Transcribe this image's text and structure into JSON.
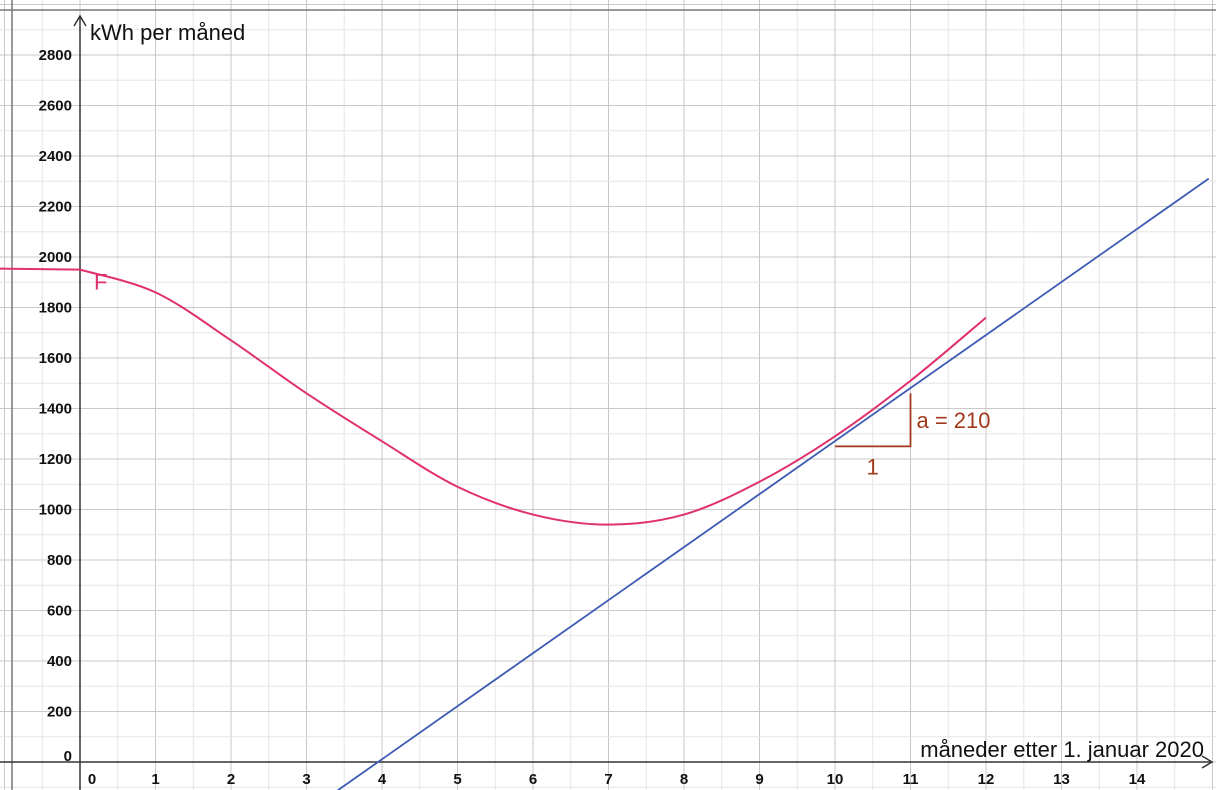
{
  "chart_data": {
    "type": "line",
    "xlabel": "måneder etter 1. januar 2020",
    "ylabel": "kWh per måned",
    "x_ticks": [
      0,
      1,
      2,
      3,
      4,
      5,
      6,
      7,
      8,
      9,
      10,
      11,
      12,
      13,
      14
    ],
    "y_ticks": [
      0,
      200,
      400,
      600,
      800,
      1000,
      1200,
      1400,
      1600,
      1800,
      2000,
      2200,
      2400,
      2600,
      2800
    ],
    "xlim": [
      -1.05,
      14.95
    ],
    "ylim": [
      -110,
      3000
    ],
    "grid": true,
    "series": [
      {
        "name": "F",
        "kind": "curve",
        "color": "#e0306e",
        "x": [
          0,
          1,
          2,
          3,
          4,
          5,
          6,
          7,
          8,
          9,
          10,
          11,
          12
        ],
        "y": [
          1950,
          1860,
          1670,
          1460,
          1270,
          1090,
          980,
          940,
          980,
          1110,
          1290,
          1510,
          1760
        ]
      },
      {
        "kind": "tangent-line",
        "color": "#3d5bb5",
        "slope": 210,
        "point": [
          9.9,
          1250
        ],
        "x_range": [
          3.4,
          14.95
        ]
      }
    ],
    "annotations": [
      {
        "kind": "slope-triangle",
        "color": "#a13a1a",
        "from": [
          10,
          1250
        ],
        "run": 1,
        "rise": 210,
        "run_label": "1",
        "rise_label": "a = 210"
      }
    ]
  }
}
